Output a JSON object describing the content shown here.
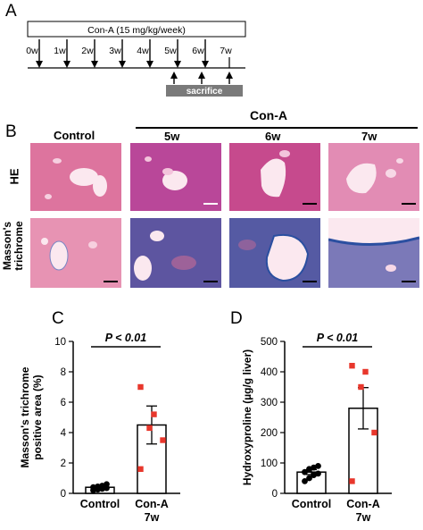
{
  "panel_a": {
    "letter": "A",
    "treatment_label": "Con-A (15 mg/kg/week)",
    "weeks": [
      "0w",
      "1w",
      "2w",
      "3w",
      "4w",
      "5w",
      "6w",
      "7w"
    ],
    "sacrifice_label": "sacrifice"
  },
  "panel_b": {
    "letter": "B",
    "control_header": "Control",
    "cona_header": "Con-A",
    "week_headers": [
      "5w",
      "6w",
      "7w"
    ],
    "row_labels": {
      "he": "HE",
      "masson_line1": "Masson's",
      "masson_line2": "trichrome"
    }
  },
  "chart_data": [
    {
      "panel": "C",
      "type": "bar",
      "ylabel_line1": "Masson's trichrome",
      "ylabel_line2": "positive area (%)",
      "ylim": [
        0,
        10
      ],
      "yticks": [
        0,
        2,
        4,
        6,
        8,
        10
      ],
      "categories": [
        "Control",
        "Con-A 7w"
      ],
      "category_lines": [
        [
          "Control"
        ],
        [
          "Con-A",
          "7w"
        ]
      ],
      "means": [
        0.4,
        4.5
      ],
      "sem": [
        0.1,
        1.25
      ],
      "points": [
        [
          0.2,
          0.25,
          0.3,
          0.35,
          0.4,
          0.45,
          0.5,
          0.6
        ],
        [
          7.0,
          5.2,
          4.3,
          3.5,
          1.6
        ]
      ],
      "significance": "P < 0.01",
      "point_colors": [
        "#000000",
        "#e8372c"
      ]
    },
    {
      "panel": "D",
      "type": "bar",
      "ylabel": "Hydroxyproline (µg/g liver)",
      "ylim": [
        0,
        500
      ],
      "yticks": [
        0,
        100,
        200,
        300,
        400,
        500
      ],
      "categories": [
        "Control",
        "Con-A 7w"
      ],
      "category_lines": [
        [
          "Control"
        ],
        [
          "Con-A",
          "7w"
        ]
      ],
      "means": [
        70,
        280
      ],
      "sem": [
        8,
        68
      ],
      "points": [
        [
          40,
          50,
          60,
          65,
          70,
          80,
          85,
          90
        ],
        [
          420,
          400,
          350,
          200,
          40
        ]
      ],
      "significance": "P < 0.01",
      "point_colors": [
        "#000000",
        "#e8372c"
      ]
    }
  ]
}
